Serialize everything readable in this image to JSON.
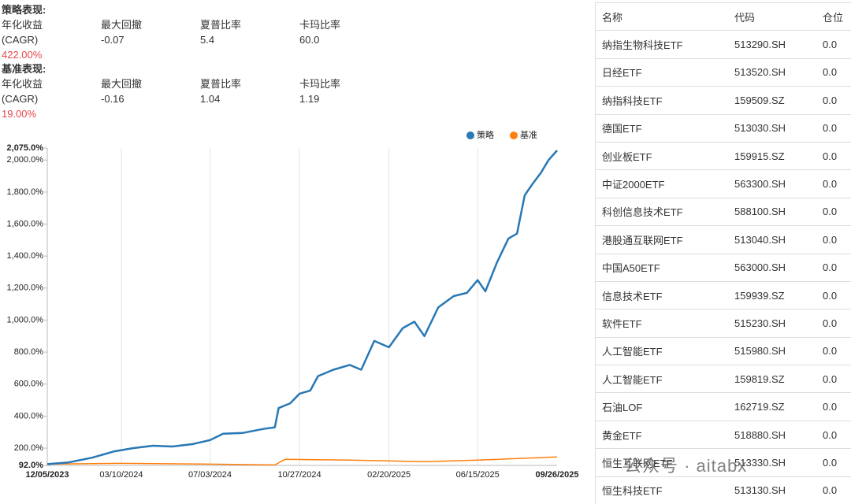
{
  "strategy": {
    "title": "策略表现:",
    "metrics": [
      {
        "label": "年化收益 (CAGR)",
        "value": "422.00%"
      },
      {
        "label": "最大回撤",
        "value": "-0.07"
      },
      {
        "label": "夏普比率",
        "value": "5.4"
      },
      {
        "label": "卡玛比率",
        "value": "60.0"
      }
    ]
  },
  "benchmark": {
    "title": "基准表现:",
    "metrics": [
      {
        "label": "年化收益 (CAGR)",
        "value": "19.00%"
      },
      {
        "label": "最大回撤",
        "value": "-0.16"
      },
      {
        "label": "夏普比率",
        "value": "1.04"
      },
      {
        "label": "卡玛比率",
        "value": "1.19"
      }
    ]
  },
  "chart_data": {
    "type": "line",
    "xlim": [
      "12/05/2023",
      "09/26/2025"
    ],
    "xticks": [
      "12/05/2023",
      "03/10/2024",
      "07/03/2024",
      "10/27/2024",
      "02/20/2025",
      "06/15/2025",
      "09/26/2025"
    ],
    "ylim": [
      92,
      2075
    ],
    "yticks": [
      {
        "value": 92,
        "label": "92.0%"
      },
      {
        "value": 200,
        "label": "200.0%"
      },
      {
        "value": 400,
        "label": "400.0%"
      },
      {
        "value": 600,
        "label": "600.0%"
      },
      {
        "value": 800,
        "label": "800.0%"
      },
      {
        "value": 1000,
        "label": "1,000.0%"
      },
      {
        "value": 1200,
        "label": "1,200.0%"
      },
      {
        "value": 1400,
        "label": "1,400.0%"
      },
      {
        "value": 1600,
        "label": "1,600.0%"
      },
      {
        "value": 1800,
        "label": "1,800.0%"
      },
      {
        "value": 2000,
        "label": "2,000.0%"
      },
      {
        "value": 2075,
        "label": "2,075.0%"
      }
    ],
    "grid": true,
    "legend": "top-right",
    "series": [
      {
        "name": "策略",
        "color": "#2878b5",
        "x": [
          "12/05/2023",
          "01/01/2024",
          "02/01/2024",
          "03/01/2024",
          "03/25/2024",
          "04/20/2024",
          "05/15/2024",
          "06/10/2024",
          "07/03/2024",
          "07/20/2024",
          "08/15/2024",
          "09/10/2024",
          "09/25/2024",
          "09/30/2024",
          "10/15/2024",
          "10/27/2024",
          "11/10/2024",
          "11/20/2024",
          "12/10/2024",
          "12/31/2024",
          "01/15/2025",
          "02/01/2025",
          "02/20/2025",
          "03/10/2025",
          "03/25/2025",
          "04/07/2025",
          "04/25/2025",
          "05/15/2025",
          "06/01/2025",
          "06/15/2025",
          "06/25/2025",
          "07/10/2025",
          "07/25/2025",
          "08/05/2025",
          "08/15/2025",
          "08/25/2025",
          "09/05/2025",
          "09/15/2025",
          "09/26/2025"
        ],
        "values": [
          100,
          110,
          140,
          180,
          200,
          215,
          210,
          225,
          250,
          290,
          295,
          320,
          330,
          450,
          480,
          540,
          560,
          650,
          690,
          720,
          690,
          870,
          830,
          950,
          990,
          900,
          1080,
          1150,
          1170,
          1250,
          1180,
          1360,
          1510,
          1540,
          1780,
          1850,
          1920,
          2000,
          2060
        ]
      },
      {
        "name": "基准",
        "color": "#ff7f0e",
        "x": [
          "12/05/2023",
          "03/10/2024",
          "07/03/2024",
          "09/25/2024",
          "10/08/2024",
          "12/31/2024",
          "02/20/2025",
          "04/08/2025",
          "06/15/2025",
          "09/26/2025"
        ],
        "values": [
          100,
          105,
          100,
          95,
          130,
          125,
          120,
          115,
          125,
          145
        ]
      }
    ]
  },
  "table": {
    "headers": [
      "名称",
      "代码",
      "仓位"
    ],
    "rows": [
      [
        "纳指生物科技ETF",
        "513290.SH",
        "0.0"
      ],
      [
        "日经ETF",
        "513520.SH",
        "0.0"
      ],
      [
        "纳指科技ETF",
        "159509.SZ",
        "0.0"
      ],
      [
        "德国ETF",
        "513030.SH",
        "0.0"
      ],
      [
        "创业板ETF",
        "159915.SZ",
        "0.0"
      ],
      [
        "中证2000ETF",
        "563300.SH",
        "0.0"
      ],
      [
        "科创信息技术ETF",
        "588100.SH",
        "0.0"
      ],
      [
        "港股通互联网ETF",
        "513040.SH",
        "0.0"
      ],
      [
        "中国A50ETF",
        "563000.SH",
        "0.0"
      ],
      [
        "信息技术ETF",
        "159939.SZ",
        "0.0"
      ],
      [
        "软件ETF",
        "515230.SH",
        "0.0"
      ],
      [
        "人工智能ETF",
        "515980.SH",
        "0.0"
      ],
      [
        "人工智能ETF",
        "159819.SZ",
        "0.0"
      ],
      [
        "石油LOF",
        "162719.SZ",
        "0.0"
      ],
      [
        "黄金ETF",
        "518880.SH",
        "0.0"
      ],
      [
        "恒生互联网ETF",
        "513330.SH",
        "0.0"
      ],
      [
        "恒生科技ETF",
        "513130.SH",
        "0.0"
      ]
    ]
  },
  "watermark": "公众号 · aitabx"
}
